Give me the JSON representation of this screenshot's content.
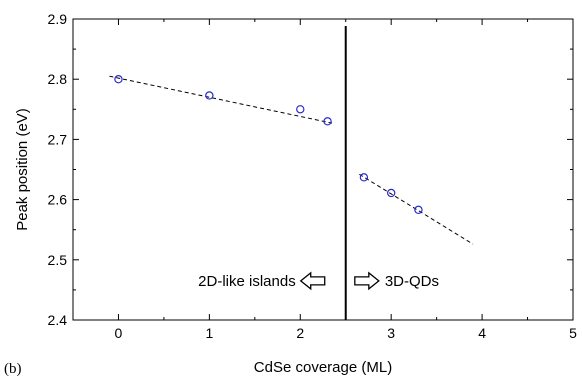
{
  "chart_data": {
    "type": "scatter",
    "title": "",
    "xlabel": "CdSe coverage (ML)",
    "ylabel": "Peak position (eV)",
    "panel_label": "(b)",
    "xlim": [
      -0.5,
      5
    ],
    "ylim": [
      2.4,
      2.9
    ],
    "xticks": [
      0,
      1,
      2,
      3,
      4,
      5
    ],
    "yticks": [
      2.4,
      2.5,
      2.6,
      2.7,
      2.8,
      2.9
    ],
    "xtick_labels": [
      "0",
      "1",
      "2",
      "3",
      "4",
      "5"
    ],
    "ytick_labels": [
      "2.4",
      "2.5",
      "2.6",
      "2.7",
      "2.8",
      "2.9"
    ],
    "grid": false,
    "marker_color": "#2a2ad0",
    "series": [
      {
        "x": [
          0,
          1,
          2,
          2.3
        ],
        "y": [
          2.8,
          2.773,
          2.75,
          2.73
        ]
      },
      {
        "x": [
          2.7,
          3.0,
          3.3
        ],
        "y": [
          2.637,
          2.611,
          2.583
        ]
      }
    ],
    "fit_lines": [
      {
        "style": "dashed",
        "x": [
          -0.1,
          2.35
        ],
        "y": [
          2.805,
          2.727
        ]
      },
      {
        "style": "dashed",
        "x": [
          2.65,
          3.9
        ],
        "y": [
          2.642,
          2.526
        ]
      }
    ],
    "vertical_line": {
      "x": 2.5
    },
    "annotations": [
      {
        "text": "2D-like islands",
        "arrow": "left",
        "x": 1.95,
        "y": 2.465
      },
      {
        "text": "3D-QDs",
        "arrow": "right",
        "x": 2.6,
        "y": 2.465
      }
    ]
  }
}
